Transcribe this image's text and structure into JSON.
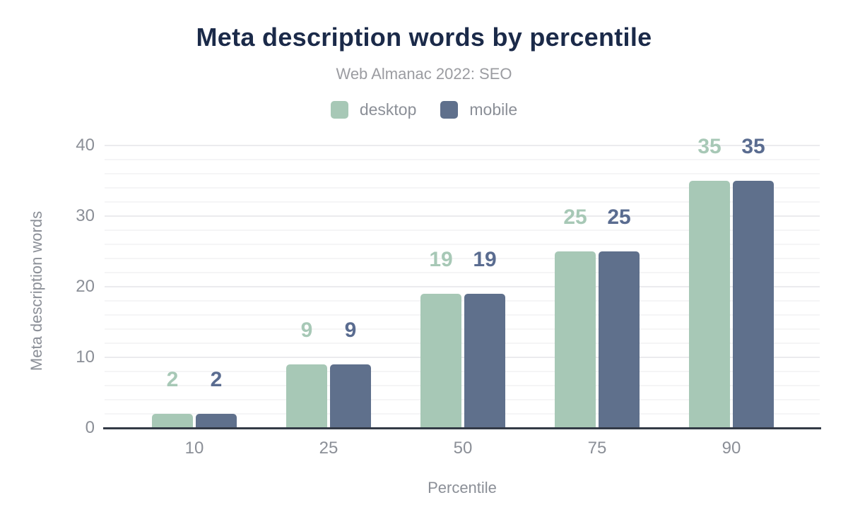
{
  "chart_data": {
    "type": "bar",
    "title": "Meta description words by percentile",
    "subtitle": "Web Almanac 2022: SEO",
    "xlabel": "Percentile",
    "ylabel": "Meta description words",
    "categories": [
      "10",
      "25",
      "50",
      "75",
      "90"
    ],
    "series": [
      {
        "name": "desktop",
        "color": "#a7c8b6",
        "label_color": "#a7c8b6",
        "values": [
          2,
          9,
          19,
          25,
          35
        ]
      },
      {
        "name": "mobile",
        "color": "#5f708c",
        "label_color": "#5a6c90",
        "values": [
          2,
          9,
          19,
          25,
          35
        ]
      }
    ],
    "ylim": [
      0,
      40
    ],
    "yticks": [
      0,
      10,
      20,
      30,
      40
    ],
    "minor_grid_step": 2,
    "major_grid_step": 10,
    "grid": true,
    "legend_position": "top",
    "bar_labels_shown": true
  },
  "colors": {
    "background": "#ffffff",
    "title": "#1b2a49",
    "subtitle": "#9b9ca1",
    "axis_text": "#8b8f97",
    "baseline": "#333a46",
    "grid_minor": "#f5f5f6",
    "grid_major": "#ebebee"
  }
}
